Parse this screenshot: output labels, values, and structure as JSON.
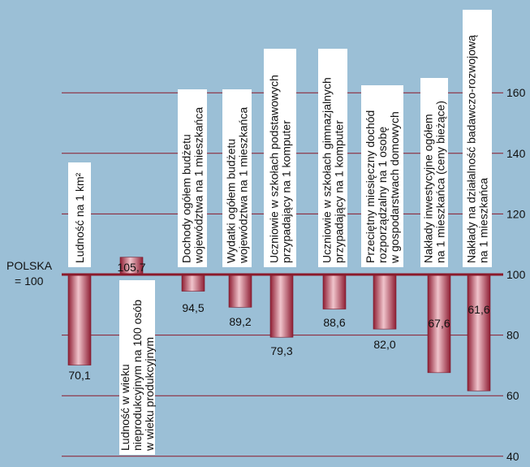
{
  "chart_data": {
    "type": "bar",
    "baseline": 100,
    "baseline_label_line1": "POLSKA",
    "baseline_label_line2": "= 100",
    "ylim": [
      40,
      170
    ],
    "yticks": [
      40,
      60,
      80,
      100,
      120,
      140,
      160
    ],
    "grid": true,
    "bar_color": "#b8394e",
    "grid_color": "#8b1a2b",
    "background": "#9bbfd6",
    "categories": [
      {
        "lines": [
          "Ludność na 1 km²"
        ],
        "value": 70.1,
        "value_label": "70,1"
      },
      {
        "lines": [
          "Ludność w wieku",
          "nieprodukcyjnym na 100 osób",
          "w wieku produkcyjnym"
        ],
        "value": 105.7,
        "value_label": "105,7"
      },
      {
        "lines": [
          "Dochody ogółem budżetu",
          "województwa na 1 mieszkańca"
        ],
        "value": 94.5,
        "value_label": "94,5"
      },
      {
        "lines": [
          "Wydatki ogółem budżetu",
          "województwa na 1 mieszkańca"
        ],
        "value": 89.2,
        "value_label": "89,2"
      },
      {
        "lines": [
          "Uczniowie w szkołach podstawowych",
          "przypadający na 1 komputer"
        ],
        "value": 79.3,
        "value_label": "79,3"
      },
      {
        "lines": [
          "Uczniowie w szkołach gimnazjalnych",
          "przypadający na 1 komputer"
        ],
        "value": 88.6,
        "value_label": "88,6"
      },
      {
        "lines": [
          "Przeciętny miesięczny dochód",
          "rozporządzalny na 1 osobę",
          "w gospodarstwach domowych"
        ],
        "value": 82.0,
        "value_label": "82,0"
      },
      {
        "lines": [
          "Nakłady inwestycyjne ogółem",
          "na 1 mieszkańca (ceny bieżące)"
        ],
        "value": 67.6,
        "value_label": "67,6"
      },
      {
        "lines": [
          "Nakłady na działalność badawczo-rozwojową",
          "na 1 mieszkańca"
        ],
        "value": 61.6,
        "value_label": "61,6"
      }
    ]
  }
}
